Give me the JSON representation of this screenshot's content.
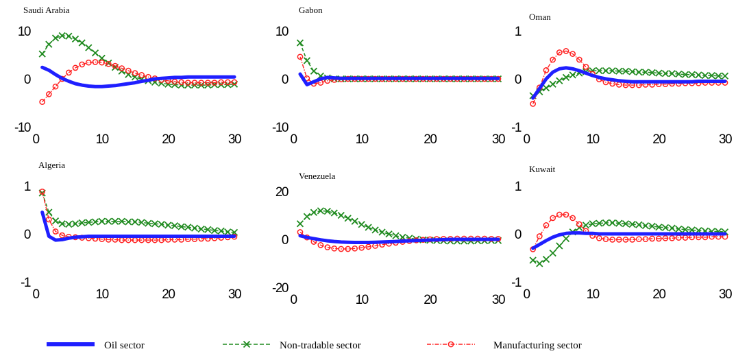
{
  "chart_data": {
    "type": "line",
    "x": [
      1,
      2,
      3,
      4,
      5,
      6,
      7,
      8,
      9,
      10,
      11,
      12,
      13,
      14,
      15,
      16,
      17,
      18,
      19,
      20,
      21,
      22,
      23,
      24,
      25,
      26,
      27,
      28,
      29,
      30
    ],
    "legend": {
      "placement": "bottom",
      "entries": [
        {
          "key": "oil",
          "label": "Oil sector",
          "color": "#1f1fff"
        },
        {
          "key": "nontradable",
          "label": "Non-tradable sector",
          "color": "#1f8a1f"
        },
        {
          "key": "manufacturing",
          "label": "Manufacturing sector",
          "color": "#ff2020"
        }
      ]
    },
    "panels": [
      {
        "title": "Saudi Arabia",
        "xlim": [
          0,
          30
        ],
        "ylim": [
          -10,
          10
        ],
        "xticks": [
          "0",
          "10",
          "20",
          "30"
        ],
        "yticks": [
          "10",
          "0",
          "-10"
        ],
        "series": {
          "oil": [
            2.4,
            1.8,
            0.9,
            0.1,
            -0.5,
            -1.0,
            -1.3,
            -1.5,
            -1.6,
            -1.6,
            -1.5,
            -1.4,
            -1.2,
            -1.0,
            -0.8,
            -0.5,
            -0.3,
            0.0,
            0.1,
            0.2,
            0.3,
            0.3,
            0.4,
            0.4,
            0.4,
            0.4,
            0.4,
            0.4,
            0.4,
            0.4
          ],
          "nontradable": [
            5.2,
            7.2,
            8.5,
            9.0,
            8.9,
            8.3,
            7.5,
            6.5,
            5.4,
            4.3,
            3.3,
            2.4,
            1.6,
            0.9,
            0.4,
            -0.1,
            -0.4,
            -0.7,
            -0.9,
            -1.1,
            -1.2,
            -1.3,
            -1.3,
            -1.3,
            -1.3,
            -1.3,
            -1.2,
            -1.2,
            -1.2,
            -1.1
          ],
          "manufacturing": [
            -4.8,
            -3.2,
            -1.6,
            0.0,
            1.3,
            2.3,
            3.0,
            3.4,
            3.5,
            3.4,
            3.1,
            2.7,
            2.2,
            1.7,
            1.2,
            0.8,
            0.4,
            0.1,
            -0.2,
            -0.4,
            -0.6,
            -0.7,
            -0.8,
            -0.8,
            -0.8,
            -0.8,
            -0.8,
            -0.7,
            -0.7,
            -0.7
          ]
        }
      },
      {
        "title": "Gabon",
        "xlim": [
          0,
          30
        ],
        "ylim": [
          -10,
          10
        ],
        "xticks": [
          "0",
          "10",
          "20",
          "30"
        ],
        "yticks": [
          "10",
          "0",
          "-10"
        ],
        "series": {
          "oil": [
            1.0,
            -1.2,
            -0.6,
            0.0,
            0.3,
            0.2,
            0.1,
            0.1,
            0.1,
            0.1,
            0.1,
            0.1,
            0.1,
            0.1,
            0.1,
            0.1,
            0.1,
            0.1,
            0.1,
            0.1,
            0.1,
            0.1,
            0.1,
            0.1,
            0.1,
            0.1,
            0.1,
            0.1,
            0.1,
            0.1
          ],
          "nontradable": [
            7.5,
            3.8,
            1.6,
            0.6,
            0.2,
            0.0,
            0.0,
            0.0,
            0.0,
            0.0,
            0.0,
            0.0,
            0.0,
            0.0,
            0.0,
            0.0,
            0.0,
            0.0,
            0.0,
            0.0,
            0.0,
            0.0,
            0.0,
            0.0,
            0.0,
            0.0,
            0.0,
            0.0,
            0.0,
            0.0
          ],
          "manufacturing": [
            4.6,
            0.1,
            -1.0,
            -0.8,
            -0.4,
            -0.2,
            -0.1,
            0.0,
            0.0,
            0.0,
            0.0,
            0.0,
            0.0,
            0.0,
            0.0,
            0.0,
            0.0,
            0.0,
            0.0,
            0.0,
            0.0,
            0.0,
            0.0,
            0.0,
            0.0,
            0.0,
            0.0,
            0.0,
            0.0,
            0.0
          ]
        }
      },
      {
        "title": "Oman",
        "xlim": [
          0,
          30
        ],
        "ylim": [
          -1,
          1
        ],
        "xticks": [
          "0",
          "10",
          "20",
          "30"
        ],
        "yticks": [
          "1",
          "0",
          "-1"
        ],
        "series": {
          "oil": [
            -0.4,
            -0.2,
            0.0,
            0.14,
            0.21,
            0.23,
            0.21,
            0.17,
            0.12,
            0.07,
            0.03,
            0.0,
            -0.02,
            -0.04,
            -0.05,
            -0.06,
            -0.06,
            -0.06,
            -0.06,
            -0.06,
            -0.06,
            -0.06,
            -0.06,
            -0.06,
            -0.06,
            -0.05,
            -0.05,
            -0.05,
            -0.05,
            -0.05
          ],
          "nontradable": [
            -0.35,
            -0.27,
            -0.19,
            -0.11,
            -0.04,
            0.03,
            0.08,
            0.12,
            0.15,
            0.17,
            0.17,
            0.17,
            0.17,
            0.16,
            0.16,
            0.15,
            0.14,
            0.14,
            0.13,
            0.12,
            0.11,
            0.11,
            0.1,
            0.09,
            0.09,
            0.08,
            0.07,
            0.07,
            0.06,
            0.06
          ],
          "manufacturing": [
            -0.52,
            -0.18,
            0.18,
            0.4,
            0.55,
            0.58,
            0.52,
            0.4,
            0.25,
            0.1,
            -0.01,
            -0.07,
            -0.1,
            -0.12,
            -0.13,
            -0.13,
            -0.13,
            -0.12,
            -0.12,
            -0.11,
            -0.11,
            -0.1,
            -0.1,
            -0.09,
            -0.09,
            -0.09,
            -0.08,
            -0.08,
            -0.08,
            -0.08
          ]
        }
      },
      {
        "title": "Algeria",
        "xlim": [
          0,
          30
        ],
        "ylim": [
          -1,
          1
        ],
        "xticks": [
          "0",
          "10",
          "20",
          "30"
        ],
        "yticks": [
          "1",
          "0",
          "-1"
        ],
        "series": {
          "oil": [
            0.45,
            -0.05,
            -0.13,
            -0.12,
            -0.09,
            -0.07,
            -0.06,
            -0.05,
            -0.05,
            -0.05,
            -0.05,
            -0.05,
            -0.05,
            -0.05,
            -0.05,
            -0.05,
            -0.05,
            -0.05,
            -0.05,
            -0.05,
            -0.05,
            -0.05,
            -0.05,
            -0.05,
            -0.05,
            -0.05,
            -0.05,
            -0.05,
            -0.05,
            -0.05
          ],
          "nontradable": [
            0.85,
            0.45,
            0.27,
            0.21,
            0.2,
            0.21,
            0.23,
            0.24,
            0.25,
            0.26,
            0.26,
            0.26,
            0.26,
            0.25,
            0.25,
            0.24,
            0.22,
            0.21,
            0.2,
            0.18,
            0.17,
            0.15,
            0.14,
            0.12,
            0.1,
            0.09,
            0.07,
            0.06,
            0.04,
            0.03
          ],
          "manufacturing": [
            0.88,
            0.3,
            0.05,
            -0.03,
            -0.06,
            -0.07,
            -0.08,
            -0.09,
            -0.1,
            -0.11,
            -0.12,
            -0.12,
            -0.13,
            -0.13,
            -0.13,
            -0.13,
            -0.13,
            -0.13,
            -0.13,
            -0.12,
            -0.12,
            -0.12,
            -0.11,
            -0.11,
            -0.1,
            -0.1,
            -0.09,
            -0.08,
            -0.07,
            -0.06
          ]
        }
      },
      {
        "title": "Venezuela",
        "xlim": [
          0,
          30
        ],
        "ylim": [
          -20,
          20
        ],
        "xticks": [
          "0",
          "10",
          "20",
          "30"
        ],
        "yticks": [
          "20",
          "0",
          "-20"
        ],
        "series": {
          "oil": [
            1.5,
            0.8,
            0.3,
            -0.2,
            -0.6,
            -0.9,
            -1.1,
            -1.2,
            -1.3,
            -1.3,
            -1.3,
            -1.2,
            -1.1,
            -1.0,
            -0.9,
            -0.7,
            -0.6,
            -0.5,
            -0.4,
            -0.3,
            -0.2,
            -0.1,
            0.0,
            0.0,
            0.0,
            0.0,
            0.0,
            0.0,
            0.0,
            0.0
          ],
          "nontradable": [
            6.5,
            9.5,
            11.2,
            11.9,
            11.7,
            11.0,
            10.0,
            8.8,
            7.5,
            6.2,
            5.0,
            3.9,
            3.0,
            2.2,
            1.5,
            0.9,
            0.5,
            0.1,
            -0.2,
            -0.4,
            -0.5,
            -0.6,
            -0.7,
            -0.7,
            -0.7,
            -0.7,
            -0.6,
            -0.6,
            -0.5,
            -0.5
          ],
          "manufacturing": [
            3.0,
            0.8,
            -1.0,
            -2.4,
            -3.3,
            -3.8,
            -4.0,
            -4.0,
            -3.8,
            -3.5,
            -3.1,
            -2.7,
            -2.2,
            -1.8,
            -1.4,
            -1.0,
            -0.7,
            -0.4,
            -0.2,
            0.0,
            0.1,
            0.2,
            0.2,
            0.3,
            0.3,
            0.3,
            0.3,
            0.3,
            0.2,
            0.2
          ]
        }
      },
      {
        "title": "Kuwait",
        "xlim": [
          0,
          30
        ],
        "ylim": [
          -1,
          1
        ],
        "xticks": [
          "0",
          "10",
          "20",
          "30"
        ],
        "yticks": [
          "1",
          "0",
          "-1"
        ],
        "series": {
          "oil": [
            -0.3,
            -0.22,
            -0.14,
            -0.07,
            -0.02,
            0.01,
            0.02,
            0.02,
            0.01,
            0.01,
            0.0,
            0.0,
            0.0,
            0.0,
            0.0,
            0.0,
            0.0,
            0.0,
            0.0,
            0.0,
            0.0,
            0.0,
            0.0,
            0.0,
            0.0,
            0.0,
            0.0,
            0.0,
            0.0,
            0.0
          ],
          "nontradable": [
            -0.55,
            -0.62,
            -0.53,
            -0.4,
            -0.25,
            -0.1,
            0.04,
            0.13,
            0.18,
            0.21,
            0.22,
            0.23,
            0.23,
            0.22,
            0.21,
            0.2,
            0.19,
            0.17,
            0.16,
            0.14,
            0.13,
            0.12,
            0.1,
            0.09,
            0.08,
            0.07,
            0.06,
            0.05,
            0.05,
            0.04
          ],
          "manufacturing": [
            -0.32,
            -0.05,
            0.18,
            0.33,
            0.4,
            0.4,
            0.33,
            0.2,
            0.06,
            -0.04,
            -0.09,
            -0.11,
            -0.12,
            -0.12,
            -0.12,
            -0.12,
            -0.11,
            -0.11,
            -0.1,
            -0.1,
            -0.09,
            -0.09,
            -0.08,
            -0.08,
            -0.07,
            -0.07,
            -0.07,
            -0.06,
            -0.06,
            -0.06
          ]
        }
      }
    ]
  }
}
